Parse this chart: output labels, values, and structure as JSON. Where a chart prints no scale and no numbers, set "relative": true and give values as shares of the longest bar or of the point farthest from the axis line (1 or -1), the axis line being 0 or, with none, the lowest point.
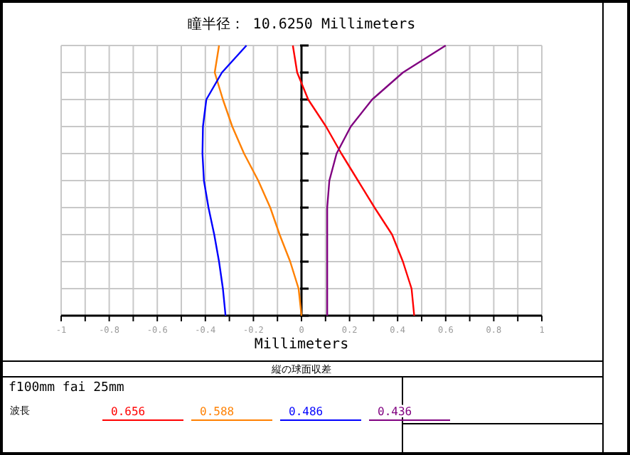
{
  "chart_data": {
    "type": "line",
    "title": "瞳半径： 10.6250 Millimeters",
    "xlabel": "Millimeters",
    "legend_title": "波長",
    "annotations": [
      "縦の球面収差",
      "f100mm fai 25mm"
    ],
    "xlim": [
      -1,
      1
    ],
    "relative": true,
    "xticks": [
      -1,
      {
        "value": -0.9,
        "label": null
      },
      -0.8,
      {
        "value": -0.7,
        "label": null
      },
      -0.6,
      {
        "value": -0.5,
        "label": null
      },
      -0.4,
      {
        "value": -0.3,
        "label": null
      },
      -0.2,
      {
        "value": -0.1,
        "label": null
      },
      0,
      {
        "value": 0.1,
        "label": null
      },
      0.2,
      {
        "value": 0.3,
        "label": null
      },
      0.4,
      {
        "value": 0.5,
        "label": null
      },
      0.6,
      {
        "value": 0.7,
        "label": null
      },
      0.8,
      {
        "value": 0.9,
        "label": null
      },
      1
    ],
    "tick_labels": "x",
    "grid": true,
    "legend": "bottom",
    "marker": "none",
    "line_style": "solid",
    "series": [
      {
        "name": "0.656",
        "color": "#ff0000",
        "x": [
          0.469,
          0.458,
          0.422,
          0.377,
          0.304,
          0.235,
          0.166,
          0.102,
          0.028,
          -0.018,
          -0.036
        ],
        "values": [
          0,
          0.1,
          0.2,
          0.3,
          0.4,
          0.5,
          0.6,
          0.7,
          0.8,
          0.9,
          1
        ]
      },
      {
        "name": "0.588",
        "color": "#ff8000",
        "x": [
          0,
          -0.012,
          -0.047,
          -0.091,
          -0.13,
          -0.18,
          -0.239,
          -0.288,
          -0.327,
          -0.361,
          -0.343
        ],
        "values": [
          0,
          0.1,
          0.2,
          0.3,
          0.4,
          0.5,
          0.6,
          0.7,
          0.8,
          0.9,
          1
        ]
      },
      {
        "name": "0.486",
        "color": "#0000ff",
        "x": [
          -0.316,
          -0.327,
          -0.343,
          -0.363,
          -0.387,
          -0.406,
          -0.412,
          -0.41,
          -0.396,
          -0.331,
          -0.229
        ],
        "values": [
          0,
          0.1,
          0.2,
          0.3,
          0.4,
          0.5,
          0.6,
          0.7,
          0.8,
          0.9,
          1
        ]
      },
      {
        "name": "0.436",
        "color": "#800080",
        "x": [
          0.107,
          0.107,
          0.107,
          0.107,
          0.107,
          0.116,
          0.146,
          0.205,
          0.294,
          0.422,
          0.6
        ],
        "values": [
          0,
          0.1,
          0.2,
          0.3,
          0.4,
          0.5,
          0.6,
          0.7,
          0.8,
          0.9,
          1
        ]
      }
    ]
  }
}
